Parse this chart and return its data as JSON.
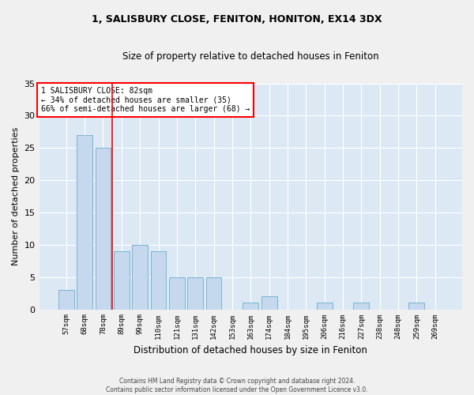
{
  "title1": "1, SALISBURY CLOSE, FENITON, HONITON, EX14 3DX",
  "title2": "Size of property relative to detached houses in Feniton",
  "xlabel": "Distribution of detached houses by size in Feniton",
  "ylabel": "Number of detached properties",
  "categories": [
    "57sqm",
    "68sqm",
    "78sqm",
    "89sqm",
    "99sqm",
    "110sqm",
    "121sqm",
    "131sqm",
    "142sqm",
    "153sqm",
    "163sqm",
    "174sqm",
    "184sqm",
    "195sqm",
    "206sqm",
    "216sqm",
    "227sqm",
    "238sqm",
    "248sqm",
    "259sqm",
    "269sqm"
  ],
  "values": [
    3,
    27,
    25,
    9,
    10,
    9,
    5,
    5,
    5,
    0,
    1,
    2,
    0,
    0,
    1,
    0,
    1,
    0,
    0,
    1,
    0
  ],
  "bar_color": "#c5d8ed",
  "bar_edge_color": "#7ab4d4",
  "bg_color": "#dce9f5",
  "grid_color": "#ffffff",
  "fig_bg_color": "#f0f0f0",
  "red_line_x": 2.5,
  "annotation_line1": "1 SALISBURY CLOSE: 82sqm",
  "annotation_line2": "← 34% of detached houses are smaller (35)",
  "annotation_line3": "66% of semi-detached houses are larger (68) →",
  "footer1": "Contains HM Land Registry data © Crown copyright and database right 2024.",
  "footer2": "Contains public sector information licensed under the Open Government Licence v3.0.",
  "ylim": [
    0,
    35
  ],
  "yticks": [
    0,
    5,
    10,
    15,
    20,
    25,
    30,
    35
  ]
}
